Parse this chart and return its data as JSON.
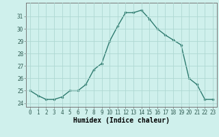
{
  "x": [
    0,
    1,
    2,
    3,
    4,
    5,
    6,
    7,
    8,
    9,
    10,
    11,
    12,
    13,
    14,
    15,
    16,
    17,
    18,
    19,
    20,
    21,
    22,
    23
  ],
  "y": [
    25.0,
    24.6,
    24.3,
    24.3,
    24.5,
    25.0,
    25.0,
    25.5,
    26.7,
    27.2,
    29.0,
    30.2,
    31.3,
    31.3,
    31.5,
    30.8,
    30.0,
    29.5,
    29.1,
    28.7,
    26.0,
    25.5,
    24.3,
    24.3
  ],
  "line_color": "#2d7a6e",
  "marker": "o",
  "marker_size": 2.0,
  "bg_color": "#cff0ec",
  "grid_color": "#aed8d2",
  "xlabel": "Humidex (Indice chaleur)",
  "ylim": [
    23.7,
    32.1
  ],
  "xlim": [
    -0.5,
    23.5
  ],
  "yticks": [
    24,
    25,
    26,
    27,
    28,
    29,
    30,
    31
  ],
  "xticks": [
    0,
    1,
    2,
    3,
    4,
    5,
    6,
    7,
    8,
    9,
    10,
    11,
    12,
    13,
    14,
    15,
    16,
    17,
    18,
    19,
    20,
    21,
    22,
    23
  ],
  "tick_fontsize": 5.5,
  "label_fontsize": 7.0,
  "line_width": 1.0
}
